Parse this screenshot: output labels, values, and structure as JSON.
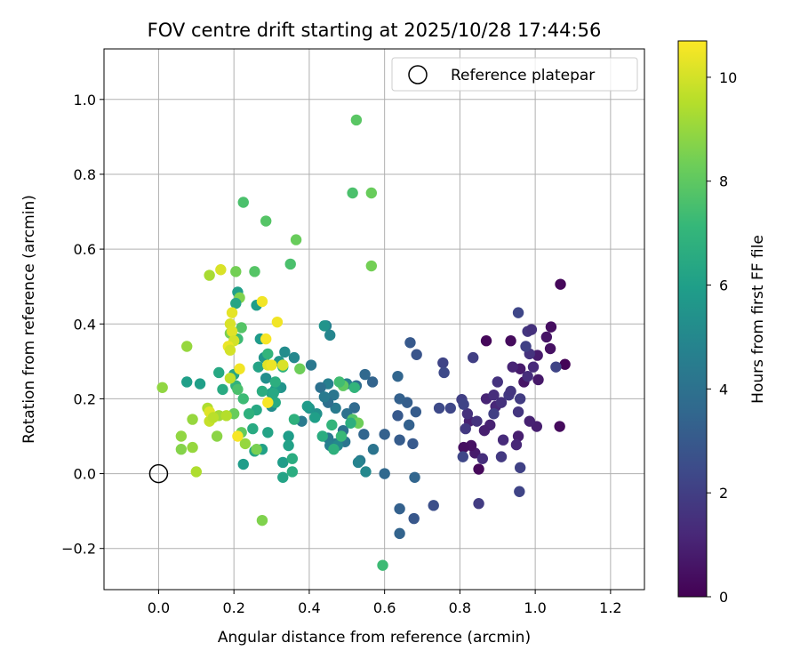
{
  "chart_data": {
    "type": "scatter",
    "title": "FOV centre drift starting at 2025/10/28 17:44:56",
    "xlabel": "Angular distance from reference (arcmin)",
    "ylabel": "Rotation from reference (arcmin)",
    "xlim": [
      -0.145,
      1.29
    ],
    "ylim": [
      -0.31,
      1.135
    ],
    "xticks": [
      0.0,
      0.2,
      0.4,
      0.6,
      0.8,
      1.0,
      1.2
    ],
    "xtick_labels": [
      "0.0",
      "0.2",
      "0.4",
      "0.6",
      "0.8",
      "1.0",
      "1.2"
    ],
    "yticks": [
      -0.2,
      0.0,
      0.2,
      0.4,
      0.6,
      0.8,
      1.0
    ],
    "ytick_labels": [
      "−0.2",
      "0.0",
      "0.2",
      "0.4",
      "0.6",
      "0.8",
      "1.0"
    ],
    "grid": true,
    "legend": {
      "position": "top-right",
      "label": "Reference platepar"
    },
    "reference_point": {
      "x": 0.0,
      "y": 0.0
    },
    "colorbar": {
      "label": "Hours from first FF file",
      "colormap": "viridis",
      "range": [
        0,
        10.7
      ],
      "ticks": [
        0,
        2,
        4,
        6,
        8,
        10
      ],
      "tick_labels": [
        "0",
        "2",
        "4",
        "6",
        "8",
        "10"
      ]
    },
    "colormap_stops": [
      "#440154",
      "#482878",
      "#3e4989",
      "#31688e",
      "#26828e",
      "#1f9e89",
      "#35b779",
      "#6ece58",
      "#b5de2b",
      "#fde725"
    ],
    "points": [
      [
        1.079,
        0.292,
        0.1
      ],
      [
        1.067,
        0.506,
        0.2
      ],
      [
        1.065,
        0.126,
        0.3
      ],
      [
        1.042,
        0.392,
        0.4
      ],
      [
        1.04,
        0.334,
        0.5
      ],
      [
        1.03,
        0.365,
        0.6
      ],
      [
        1.008,
        0.251,
        0.7
      ],
      [
        1.006,
        0.316,
        0.8
      ],
      [
        1.004,
        0.126,
        0.9
      ],
      [
        0.985,
        0.14,
        1.0
      ],
      [
        0.97,
        0.245,
        0.6
      ],
      [
        0.96,
        0.28,
        0.8
      ],
      [
        0.935,
        0.355,
        0.3
      ],
      [
        0.87,
        0.355,
        0.2
      ],
      [
        0.94,
        0.285,
        1.1
      ],
      [
        0.955,
        0.1,
        0.9
      ],
      [
        0.95,
        0.077,
        1.2
      ],
      [
        0.915,
        0.09,
        1.3
      ],
      [
        0.895,
        0.18,
        1.2
      ],
      [
        0.88,
        0.13,
        1.0
      ],
      [
        0.865,
        0.115,
        0.9
      ],
      [
        0.85,
        0.012,
        0.2
      ],
      [
        0.84,
        0.055,
        0.8
      ],
      [
        0.86,
        0.04,
        1.4
      ],
      [
        0.83,
        0.075,
        0.5
      ],
      [
        0.81,
        0.07,
        0.4
      ],
      [
        0.825,
        0.14,
        1.0
      ],
      [
        0.82,
        0.16,
        1.5
      ],
      [
        0.845,
        0.14,
        1.6
      ],
      [
        0.87,
        0.2,
        1.1
      ],
      [
        0.89,
        0.21,
        1.4
      ],
      [
        0.9,
        0.245,
        1.6
      ],
      [
        0.91,
        0.19,
        1.5
      ],
      [
        0.93,
        0.21,
        1.8
      ],
      [
        0.935,
        0.22,
        1.7
      ],
      [
        0.955,
        0.165,
        1.7
      ],
      [
        0.96,
        0.2,
        1.9
      ],
      [
        0.98,
        0.26,
        1.4
      ],
      [
        0.985,
        0.32,
        1.6
      ],
      [
        0.995,
        0.285,
        1.3
      ],
      [
        0.98,
        0.38,
        1.7
      ],
      [
        0.99,
        0.385,
        1.5
      ],
      [
        0.975,
        0.34,
        2.1
      ],
      [
        0.955,
        0.43,
        2.3
      ],
      [
        1.055,
        0.285,
        2.2
      ],
      [
        0.91,
        0.045,
        1.8
      ],
      [
        0.96,
        0.016,
        2.1
      ],
      [
        0.958,
        -0.048,
        2.2
      ],
      [
        0.85,
        -0.08,
        1.9
      ],
      [
        0.808,
        0.045,
        2.3
      ],
      [
        0.805,
        0.198,
        2.0
      ],
      [
        0.81,
        0.185,
        2.2
      ],
      [
        0.775,
        0.175,
        2.3
      ],
      [
        0.745,
        0.175,
        2.4
      ],
      [
        0.815,
        0.12,
        1.8
      ],
      [
        0.835,
        0.31,
        2.0
      ],
      [
        0.755,
        0.296,
        2.2
      ],
      [
        0.758,
        0.27,
        2.4
      ],
      [
        0.89,
        0.16,
        2.0
      ],
      [
        0.73,
        -0.085,
        2.6
      ],
      [
        0.685,
        0.318,
        2.8
      ],
      [
        0.668,
        0.35,
        3.0
      ],
      [
        0.683,
        0.165,
        3.1
      ],
      [
        0.66,
        0.19,
        3.2
      ],
      [
        0.665,
        0.13,
        3.3
      ],
      [
        0.675,
        0.08,
        3.0
      ],
      [
        0.68,
        -0.01,
        3.5
      ],
      [
        0.678,
        -0.12,
        2.9
      ],
      [
        0.64,
        0.09,
        3.1
      ],
      [
        0.64,
        -0.094,
        3.3
      ],
      [
        0.64,
        -0.16,
        3.4
      ],
      [
        0.635,
        0.26,
        3.5
      ],
      [
        0.64,
        0.2,
        3.3
      ],
      [
        0.635,
        0.155,
        3.0
      ],
      [
        0.6,
        0.105,
        3.3
      ],
      [
        0.6,
        0.0,
        3.6
      ],
      [
        0.568,
        0.245,
        3.4
      ],
      [
        0.548,
        0.265,
        3.6
      ],
      [
        0.545,
        0.105,
        3.5
      ],
      [
        0.525,
        0.235,
        3.8
      ],
      [
        0.52,
        0.176,
        3.7
      ],
      [
        0.57,
        0.065,
        4.1
      ],
      [
        0.535,
        0.035,
        4.4
      ],
      [
        0.53,
        0.03,
        4.8
      ],
      [
        0.55,
        0.005,
        5.0
      ],
      [
        0.49,
        0.115,
        4.0
      ],
      [
        0.495,
        0.085,
        4.2
      ],
      [
        0.5,
        0.16,
        4.0
      ],
      [
        0.5,
        0.24,
        4.6
      ],
      [
        0.47,
        0.175,
        4.4
      ],
      [
        0.465,
        0.21,
        4.2
      ],
      [
        0.45,
        0.19,
        3.9
      ],
      [
        0.45,
        0.24,
        4.6
      ],
      [
        0.43,
        0.23,
        4.0
      ],
      [
        0.44,
        0.205,
        4.4
      ],
      [
        0.445,
        0.395,
        4.7
      ],
      [
        0.455,
        0.37,
        4.9
      ],
      [
        0.44,
        0.395,
        5.5
      ],
      [
        0.405,
        0.29,
        4.3
      ],
      [
        0.45,
        0.095,
        4.3
      ],
      [
        0.47,
        0.08,
        4.5
      ],
      [
        0.455,
        0.075,
        4.6
      ],
      [
        0.475,
        0.075,
        5.0
      ],
      [
        0.42,
        0.16,
        5.4
      ],
      [
        0.4,
        0.175,
        5.5
      ],
      [
        0.395,
        0.18,
        5.8
      ],
      [
        0.415,
        0.15,
        6.0
      ],
      [
        0.38,
        0.14,
        4.4
      ],
      [
        0.36,
        0.31,
        5.0
      ],
      [
        0.335,
        0.325,
        5.2
      ],
      [
        0.325,
        0.23,
        5.5
      ],
      [
        0.31,
        0.225,
        5.8
      ],
      [
        0.32,
        0.3,
        5.6
      ],
      [
        0.3,
        0.18,
        5.2
      ],
      [
        0.285,
        0.255,
        5.3
      ],
      [
        0.28,
        0.31,
        5.6
      ],
      [
        0.27,
        0.36,
        5.8
      ],
      [
        0.26,
        0.45,
        5.9
      ],
      [
        0.265,
        0.285,
        6.2
      ],
      [
        0.3,
        0.215,
        6.0
      ],
      [
        0.31,
        0.19,
        6.5
      ],
      [
        0.29,
        0.32,
        7.0
      ],
      [
        0.305,
        0.215,
        6.4
      ],
      [
        0.31,
        0.245,
        6.7
      ],
      [
        0.33,
        0.285,
        6.9
      ],
      [
        0.275,
        0.22,
        6.6
      ],
      [
        0.26,
        0.17,
        6.4
      ],
      [
        0.24,
        0.16,
        6.8
      ],
      [
        0.25,
        0.12,
        6.5
      ],
      [
        0.255,
        0.06,
        6.3
      ],
      [
        0.275,
        0.065,
        6.1
      ],
      [
        0.225,
        0.025,
        5.9
      ],
      [
        0.29,
        0.11,
        6.2
      ],
      [
        0.33,
        0.03,
        5.9
      ],
      [
        0.345,
        0.1,
        5.9
      ],
      [
        0.345,
        0.075,
        6.1
      ],
      [
        0.33,
        -0.01,
        6.2
      ],
      [
        0.355,
        0.04,
        6.6
      ],
      [
        0.355,
        0.005,
        6.6
      ],
      [
        0.36,
        0.145,
        6.8
      ],
      [
        0.35,
        0.56,
        7.6
      ],
      [
        0.365,
        0.625,
        8.2
      ],
      [
        0.285,
        0.675,
        7.8
      ],
      [
        0.225,
        0.725,
        7.6
      ],
      [
        0.255,
        0.54,
        7.8
      ],
      [
        0.205,
        0.54,
        8.4
      ],
      [
        0.21,
        0.485,
        6.0
      ],
      [
        0.215,
        0.47,
        8.6
      ],
      [
        0.205,
        0.455,
        6.3
      ],
      [
        0.22,
        0.39,
        7.8
      ],
      [
        0.19,
        0.375,
        8.5
      ],
      [
        0.21,
        0.36,
        7.3
      ],
      [
        0.2,
        0.265,
        6.3
      ],
      [
        0.16,
        0.27,
        6.4
      ],
      [
        0.17,
        0.225,
        6.5
      ],
      [
        0.205,
        0.235,
        6.9
      ],
      [
        0.21,
        0.225,
        7.6
      ],
      [
        0.2,
        0.16,
        8.2
      ],
      [
        0.22,
        0.11,
        8.1
      ],
      [
        0.225,
        0.2,
        7.3
      ],
      [
        0.23,
        0.08,
        9.0
      ],
      [
        0.26,
        0.065,
        8.5
      ],
      [
        0.155,
        0.1,
        8.8
      ],
      [
        0.16,
        0.155,
        9.2
      ],
      [
        0.18,
        0.155,
        9.5
      ],
      [
        0.09,
        0.145,
        9.0
      ],
      [
        0.13,
        0.175,
        9.4
      ],
      [
        0.135,
        0.14,
        9.8
      ],
      [
        0.135,
        0.165,
        10.2
      ],
      [
        0.145,
        0.15,
        9.6
      ],
      [
        0.06,
        0.1,
        8.9
      ],
      [
        0.06,
        0.065,
        8.7
      ],
      [
        0.09,
        0.07,
        9.0
      ],
      [
        0.1,
        0.005,
        9.4
      ],
      [
        0.01,
        0.23,
        8.9
      ],
      [
        0.075,
        0.245,
        6.0
      ],
      [
        0.11,
        0.24,
        6.0
      ],
      [
        0.075,
        0.34,
        9.0
      ],
      [
        0.135,
        0.53,
        9.3
      ],
      [
        0.165,
        0.545,
        10.1
      ],
      [
        0.195,
        0.43,
        10.3
      ],
      [
        0.19,
        0.4,
        10.1
      ],
      [
        0.195,
        0.38,
        10.2
      ],
      [
        0.2,
        0.355,
        10.0
      ],
      [
        0.185,
        0.34,
        10.4
      ],
      [
        0.19,
        0.33,
        10.0
      ],
      [
        0.215,
        0.28,
        10.5
      ],
      [
        0.19,
        0.255,
        9.7
      ],
      [
        0.21,
        0.1,
        10.6
      ],
      [
        0.275,
        0.46,
        10.5
      ],
      [
        0.285,
        0.36,
        10.6
      ],
      [
        0.29,
        0.29,
        10.2
      ],
      [
        0.3,
        0.29,
        10.4
      ],
      [
        0.315,
        0.405,
        10.5
      ],
      [
        0.33,
        0.29,
        10.1
      ],
      [
        0.29,
        0.19,
        10.6
      ],
      [
        0.275,
        -0.125,
        8.6
      ],
      [
        0.525,
        0.945,
        7.9
      ],
      [
        0.515,
        0.75,
        7.6
      ],
      [
        0.565,
        0.75,
        8.2
      ],
      [
        0.565,
        0.555,
        8.4
      ],
      [
        0.595,
        -0.245,
        7.3
      ],
      [
        0.375,
        0.28,
        8.3
      ],
      [
        0.49,
        0.235,
        8.0
      ],
      [
        0.48,
        0.245,
        7.4
      ],
      [
        0.485,
        0.1,
        7.2
      ],
      [
        0.515,
        0.145,
        7.8
      ],
      [
        0.53,
        0.135,
        8.3
      ],
      [
        0.52,
        0.23,
        7.0
      ],
      [
        0.465,
        0.065,
        6.8
      ],
      [
        0.435,
        0.1,
        6.6
      ],
      [
        0.46,
        0.13,
        7.0
      ],
      [
        0.51,
        0.135,
        6.7
      ]
    ]
  }
}
